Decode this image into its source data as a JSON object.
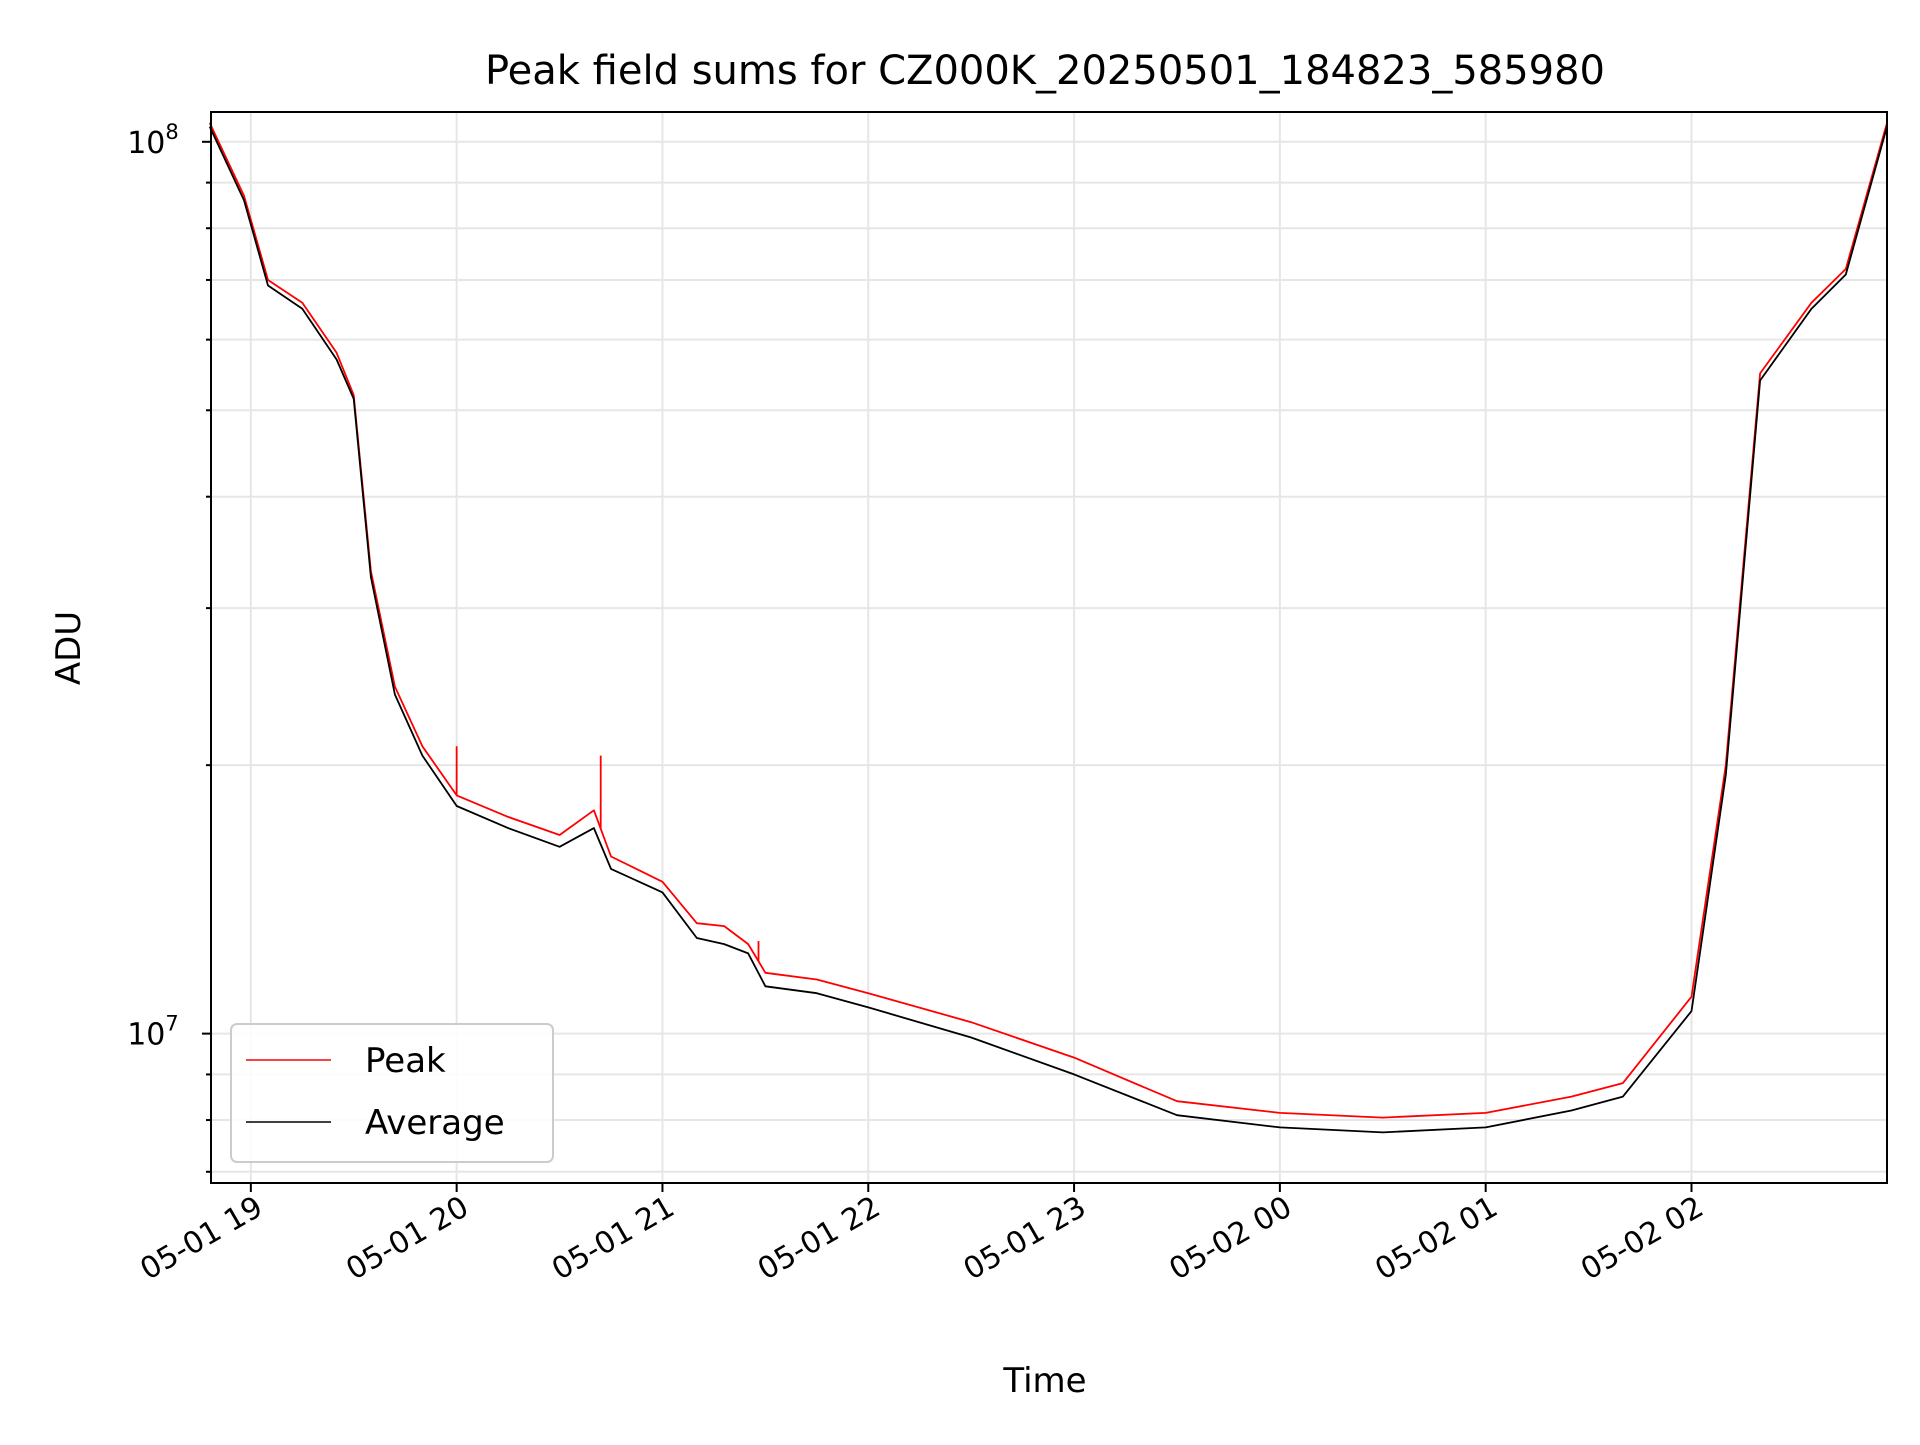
{
  "chart_data": {
    "type": "line",
    "title": "Peak field sums for CZ000K_20250501_184823_585980",
    "xlabel": "Time",
    "ylabel": "ADU",
    "y_scale": "log",
    "ylim": [
      6800000,
      108000000
    ],
    "xlim": [
      "2025-05-01 18:48:23",
      "2025-05-02 02:57"
    ],
    "x_tick_labels": [
      "05-01 19",
      "05-01 20",
      "05-01 21",
      "05-01 22",
      "05-01 23",
      "05-02 00",
      "05-02 01",
      "05-02 02"
    ],
    "x_ticks": [
      "2025-05-01 19:00",
      "2025-05-01 20:00",
      "2025-05-01 21:00",
      "2025-05-01 22:00",
      "2025-05-01 23:00",
      "2025-05-02 00:00",
      "2025-05-02 01:00",
      "2025-05-02 02:00"
    ],
    "y_tick_labels": [
      {
        "base": "10",
        "exp": "7",
        "value": 10000000
      },
      {
        "base": "10",
        "exp": "8",
        "value": 100000000
      }
    ],
    "grid": true,
    "legend_position": "lower-left",
    "series": [
      {
        "name": "Peak",
        "color": "#ff0000",
        "x": [
          "2025-05-01 18:48",
          "2025-05-01 18:58",
          "2025-05-01 19:05",
          "2025-05-01 19:15",
          "2025-05-01 19:25",
          "2025-05-01 19:30",
          "2025-05-01 19:35",
          "2025-05-01 19:42",
          "2025-05-01 19:50",
          "2025-05-01 20:00",
          "2025-05-01 20:15",
          "2025-05-01 20:30",
          "2025-05-01 20:40",
          "2025-05-01 20:45",
          "2025-05-01 21:00",
          "2025-05-01 21:10",
          "2025-05-01 21:18",
          "2025-05-01 21:25",
          "2025-05-01 21:30",
          "2025-05-01 21:45",
          "2025-05-01 22:00",
          "2025-05-01 22:30",
          "2025-05-01 23:00",
          "2025-05-01 23:30",
          "2025-05-02 00:00",
          "2025-05-02 00:30",
          "2025-05-02 01:00",
          "2025-05-02 01:25",
          "2025-05-02 01:40",
          "2025-05-02 02:00",
          "2025-05-02 02:10",
          "2025-05-02 02:20",
          "2025-05-02 02:35",
          "2025-05-02 02:45",
          "2025-05-02 02:57"
        ],
        "y": [
          105000000,
          87000000,
          70000000,
          66000000,
          58000000,
          52000000,
          33000000,
          24500000,
          21000000,
          18500000,
          17500000,
          16700000,
          17800000,
          15800000,
          14800000,
          13300000,
          13200000,
          12600000,
          11700000,
          11500000,
          11100000,
          10300000,
          9400000,
          8400000,
          8150000,
          8050000,
          8150000,
          8500000,
          8800000,
          11000000,
          20000000,
          55000000,
          66000000,
          72000000,
          105000000
        ]
      },
      {
        "name": "Average",
        "color": "#000000",
        "x": [
          "2025-05-01 18:48",
          "2025-05-01 18:58",
          "2025-05-01 19:05",
          "2025-05-01 19:15",
          "2025-05-01 19:25",
          "2025-05-01 19:30",
          "2025-05-01 19:35",
          "2025-05-01 19:42",
          "2025-05-01 19:50",
          "2025-05-01 20:00",
          "2025-05-01 20:15",
          "2025-05-01 20:30",
          "2025-05-01 20:40",
          "2025-05-01 20:45",
          "2025-05-01 21:00",
          "2025-05-01 21:10",
          "2025-05-01 21:18",
          "2025-05-01 21:25",
          "2025-05-01 21:30",
          "2025-05-01 21:45",
          "2025-05-01 22:00",
          "2025-05-01 22:30",
          "2025-05-01 23:00",
          "2025-05-01 23:30",
          "2025-05-02 00:00",
          "2025-05-02 00:30",
          "2025-05-02 01:00",
          "2025-05-02 01:25",
          "2025-05-02 01:40",
          "2025-05-02 02:00",
          "2025-05-02 02:10",
          "2025-05-02 02:20",
          "2025-05-02 02:35",
          "2025-05-02 02:45",
          "2025-05-02 02:57"
        ],
        "y": [
          104000000,
          86000000,
          69000000,
          65000000,
          57000000,
          51500000,
          32500000,
          24000000,
          20500000,
          18000000,
          17000000,
          16200000,
          17000000,
          15300000,
          14400000,
          12800000,
          12600000,
          12300000,
          11300000,
          11100000,
          10700000,
          9900000,
          9000000,
          8100000,
          7850000,
          7750000,
          7850000,
          8200000,
          8500000,
          10600000,
          19500000,
          54000000,
          65000000,
          71000000,
          104000000
        ]
      }
    ],
    "annotations": [
      {
        "series": "Peak",
        "x": "2025-05-01 20:00",
        "y": 21000000,
        "kind": "spike"
      },
      {
        "series": "Peak",
        "x": "2025-05-01 20:42",
        "y": 20500000,
        "kind": "spike"
      },
      {
        "series": "Peak",
        "x": "2025-05-01 21:28",
        "y": 12700000,
        "kind": "spike"
      }
    ]
  }
}
